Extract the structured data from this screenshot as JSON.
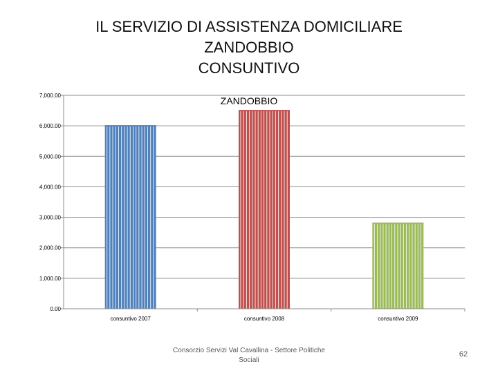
{
  "slide": {
    "title_lines": [
      "IL SERVIZIO DI ASSISTENZA DOMICILIARE",
      "ZANDOBBIO",
      "CONSUNTIVO"
    ],
    "footer": "Consorzio Servizi Val Cavallina - Settore Politiche Sociali",
    "page_number": "62"
  },
  "chart_data": {
    "type": "bar",
    "title": "ZANDOBBIO",
    "categories": [
      "consuntivo 2007",
      "consuntivo 2008",
      "consuntivo 2009"
    ],
    "values": [
      6000,
      6500,
      2800
    ],
    "colors": [
      "#4f81bd",
      "#c0504d",
      "#9bbb59"
    ],
    "ylim": [
      0,
      7000
    ],
    "yticks": [
      0,
      1000,
      2000,
      3000,
      4000,
      5000,
      6000,
      7000
    ],
    "ytick_labels": [
      "0.00",
      "1,000.00",
      "2,000.00",
      "3,000.00",
      "4,000.00",
      "5,000.00",
      "6,000.00",
      "7,000.00"
    ],
    "grid": true,
    "xlabel": "",
    "ylabel": ""
  }
}
